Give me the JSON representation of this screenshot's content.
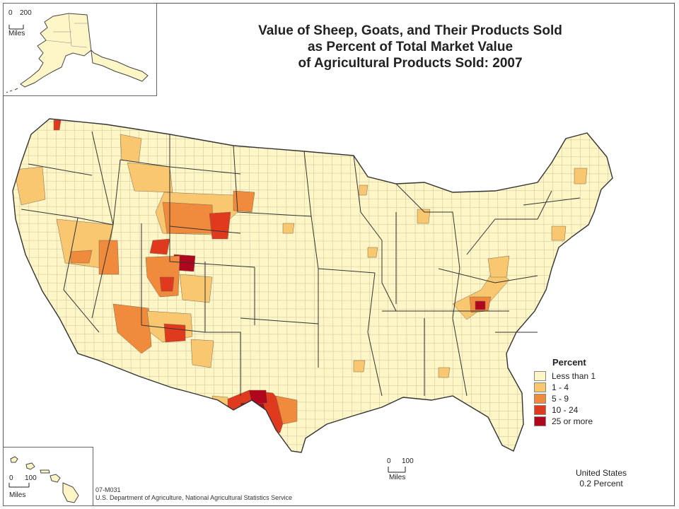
{
  "title": {
    "line1": "Value of Sheep, Goats, and Their Products Sold",
    "line2": "as Percent of Total Market Value",
    "line3": "of Agricultural Products Sold:  2007"
  },
  "alaska_scale": {
    "left": "0",
    "right": "200",
    "unit": "Miles"
  },
  "hawaii_scale": {
    "left": "0",
    "right": "100",
    "unit": "Miles"
  },
  "main_scale": {
    "left": "0",
    "right": "100",
    "unit": "Miles"
  },
  "legend": {
    "title": "Percent",
    "items": [
      {
        "label": "Less than 1",
        "color": "#fff6c8"
      },
      {
        "label": "1 - 4",
        "color": "#f8c770"
      },
      {
        "label": "5 - 9",
        "color": "#f08a3c"
      },
      {
        "label": "10 - 24",
        "color": "#e03a1e"
      },
      {
        "label": "25 or more",
        "color": "#b0061e"
      }
    ]
  },
  "us_summary": {
    "line1": "United States",
    "line2": "0.2 Percent"
  },
  "footer": {
    "map_id": "07-M031",
    "source": "U.S. Department of Agriculture, National Agricultural Statistics Service"
  },
  "colors": {
    "base": "#fff6c8",
    "class2": "#f8c770",
    "class3": "#f08a3c",
    "class4": "#e03a1e",
    "class5": "#b0061e",
    "border": "#555555"
  }
}
